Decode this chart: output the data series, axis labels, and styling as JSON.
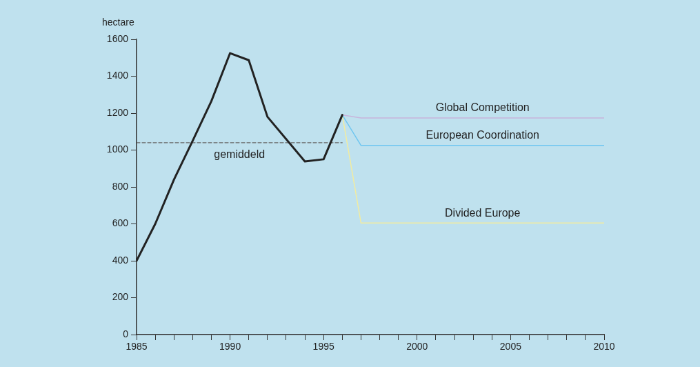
{
  "chart_data": {
    "type": "line",
    "ylabel": "hectare",
    "xlim": [
      1985,
      2010
    ],
    "ylim": [
      0,
      1600
    ],
    "xticks": [
      1985,
      {
        "value": 1986,
        "label": null
      },
      {
        "value": 1987,
        "label": null
      },
      {
        "value": 1988,
        "label": null
      },
      {
        "value": 1989,
        "label": null
      },
      1990,
      {
        "value": 1991,
        "label": null
      },
      {
        "value": 1992,
        "label": null
      },
      {
        "value": 1993,
        "label": null
      },
      {
        "value": 1994,
        "label": null
      },
      1995,
      {
        "value": 1996,
        "label": null
      },
      {
        "value": 1997,
        "label": null
      },
      {
        "value": 1998,
        "label": null
      },
      {
        "value": 1999,
        "label": null
      },
      2000,
      {
        "value": 2001,
        "label": null
      },
      {
        "value": 2002,
        "label": null
      },
      {
        "value": 2003,
        "label": null
      },
      {
        "value": 2004,
        "label": null
      },
      2005,
      {
        "value": 2006,
        "label": null
      },
      {
        "value": 2007,
        "label": null
      },
      {
        "value": 2008,
        "label": null
      },
      {
        "value": 2009,
        "label": null
      },
      2010
    ],
    "yticks": [
      0,
      200,
      400,
      600,
      800,
      1000,
      1200,
      1400,
      1600
    ],
    "grid": false,
    "legend": false,
    "marker": "none",
    "series": [
      {
        "color": "#222222",
        "x": [
          1985,
          1986,
          1987,
          1988,
          1989,
          1990,
          1991,
          1992,
          1994,
          1995,
          1996
        ],
        "values": [
          400,
          600,
          840,
          1050,
          1265,
          1525,
          1487,
          1180,
          938,
          950,
          1190
        ]
      },
      {
        "name": "gemiddeld",
        "color": "#666666",
        "line_style": "dashed",
        "x": [
          1985,
          1996
        ],
        "values": [
          1040,
          1040
        ]
      },
      {
        "name": "Global Competition",
        "color": "#c8b4dc",
        "x": [
          1996,
          1997,
          2010
        ],
        "values": [
          1190,
          1174,
          1174
        ]
      },
      {
        "name": "European Coordination",
        "color": "#6ec6f0",
        "x": [
          1996,
          1997,
          2010
        ],
        "values": [
          1190,
          1025,
          1025
        ]
      },
      {
        "name": "Divided Europe",
        "color": "#f2eca0",
        "x": [
          1996,
          1997,
          2010
        ],
        "values": [
          1190,
          605,
          605
        ]
      }
    ]
  }
}
